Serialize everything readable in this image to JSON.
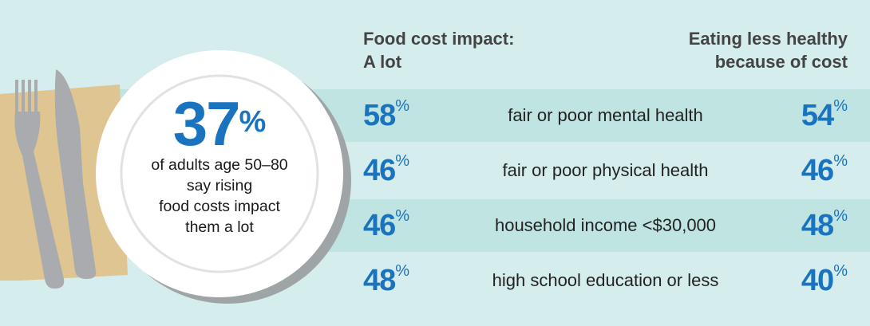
{
  "headline": {
    "value": "37",
    "unit": "%",
    "lines": [
      "of adults age 50–80",
      "say rising",
      "food costs impact",
      "them a lot"
    ]
  },
  "columns": {
    "left": [
      "Food cost impact:",
      "A lot"
    ],
    "right": [
      "Eating less healthy",
      "because of cost"
    ]
  },
  "rows": [
    {
      "label": "fair or poor mental health",
      "left": "58",
      "right": "54"
    },
    {
      "label": "fair or poor physical health",
      "left": "46",
      "right": "46"
    },
    {
      "label": "household income <$30,000",
      "left": "46",
      "right": "48"
    },
    {
      "label": "high school education or less",
      "left": "48",
      "right": "40"
    }
  ],
  "unit": "%",
  "colors": {
    "accent": "#1a73be",
    "background": "#d6eded",
    "band": "#bfe4e2"
  }
}
